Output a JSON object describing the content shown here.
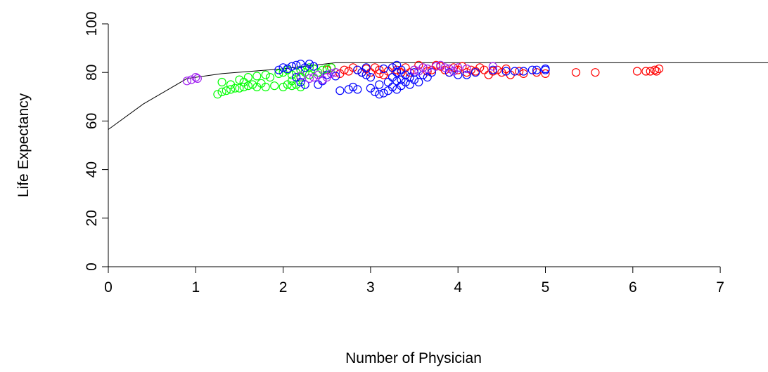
{
  "chart_data": {
    "type": "scatter",
    "title": "",
    "xlabel": "Number of Physician",
    "ylabel": "Life Expectancy",
    "xlim": [
      0,
      7.5
    ],
    "ylim": [
      0,
      100
    ],
    "x_ticks": [
      0,
      1,
      2,
      3,
      4,
      5,
      6,
      7
    ],
    "y_ticks": [
      0,
      20,
      40,
      60,
      80,
      100
    ],
    "grid": false,
    "legend": "none",
    "trend_line": {
      "x": [
        0,
        0.4,
        0.9,
        1.3,
        2.0,
        2.6,
        7.6
      ],
      "y": [
        56.5,
        67,
        77.5,
        79.5,
        81.5,
        84,
        84
      ]
    },
    "series": [
      {
        "color": "#ff0000",
        "points": [
          [
            2.6,
            80
          ],
          [
            2.7,
            81
          ],
          [
            2.75,
            80.5
          ],
          [
            2.8,
            82
          ],
          [
            2.85,
            81
          ],
          [
            2.9,
            80
          ],
          [
            2.95,
            81.5
          ],
          [
            3.0,
            80
          ],
          [
            3.05,
            82
          ],
          [
            3.1,
            81
          ],
          [
            3.15,
            79
          ],
          [
            3.2,
            80.5
          ],
          [
            3.25,
            82
          ],
          [
            3.3,
            81
          ],
          [
            3.4,
            82
          ],
          [
            3.45,
            80
          ],
          [
            3.5,
            81
          ],
          [
            3.55,
            83
          ],
          [
            3.6,
            82
          ],
          [
            3.65,
            80.5
          ],
          [
            3.7,
            81
          ],
          [
            3.75,
            83
          ],
          [
            3.8,
            82.5
          ],
          [
            3.85,
            81
          ],
          [
            3.9,
            80
          ],
          [
            3.95,
            82
          ],
          [
            4.0,
            81
          ],
          [
            4.05,
            82.5
          ],
          [
            4.1,
            80
          ],
          [
            4.15,
            81
          ],
          [
            4.2,
            80.5
          ],
          [
            4.25,
            82
          ],
          [
            4.3,
            81
          ],
          [
            4.35,
            79
          ],
          [
            4.4,
            80.5
          ],
          [
            4.45,
            81
          ],
          [
            4.5,
            80
          ],
          [
            4.55,
            81.5
          ],
          [
            4.6,
            79
          ],
          [
            4.7,
            80.5
          ],
          [
            4.75,
            79.5
          ],
          [
            4.9,
            80
          ],
          [
            5.0,
            79.5
          ],
          [
            5.35,
            80
          ],
          [
            5.57,
            80
          ],
          [
            6.05,
            80.5
          ],
          [
            6.15,
            80.5
          ],
          [
            6.2,
            80.5
          ],
          [
            6.25,
            81
          ],
          [
            6.27,
            80.5
          ],
          [
            6.3,
            81.5
          ],
          [
            2.5,
            81
          ],
          [
            2.55,
            82
          ],
          [
            2.65,
            79.5
          ],
          [
            3.35,
            80
          ],
          [
            3.1,
            79.5
          ]
        ]
      },
      {
        "color": "#00ff00",
        "points": [
          [
            1.25,
            71
          ],
          [
            1.3,
            72
          ],
          [
            1.35,
            72.5
          ],
          [
            1.4,
            73
          ],
          [
            1.45,
            73.5
          ],
          [
            1.5,
            73.5
          ],
          [
            1.55,
            74
          ],
          [
            1.6,
            74.5
          ],
          [
            1.65,
            75
          ],
          [
            1.7,
            74
          ],
          [
            1.75,
            75.5
          ],
          [
            1.8,
            74
          ],
          [
            1.9,
            74.5
          ],
          [
            2.0,
            74
          ],
          [
            2.05,
            75
          ],
          [
            2.1,
            74.5
          ],
          [
            2.15,
            75
          ],
          [
            2.2,
            74
          ],
          [
            1.3,
            76
          ],
          [
            1.5,
            77
          ],
          [
            1.6,
            78
          ],
          [
            1.7,
            78.5
          ],
          [
            1.8,
            79
          ],
          [
            1.85,
            78
          ],
          [
            1.95,
            79.5
          ],
          [
            2.0,
            80
          ],
          [
            2.05,
            81
          ],
          [
            2.1,
            79
          ],
          [
            2.15,
            80
          ],
          [
            2.2,
            81
          ],
          [
            2.25,
            80
          ],
          [
            2.3,
            82
          ],
          [
            2.35,
            81.5
          ],
          [
            2.4,
            80
          ],
          [
            2.45,
            81
          ],
          [
            2.5,
            81.5
          ],
          [
            2.55,
            82
          ],
          [
            2.3,
            79
          ],
          [
            2.2,
            78
          ],
          [
            2.1,
            76.5
          ],
          [
            1.4,
            75
          ],
          [
            1.55,
            76
          ]
        ]
      },
      {
        "color": "#0000ff",
        "points": [
          [
            1.95,
            81
          ],
          [
            2.0,
            82
          ],
          [
            2.05,
            81.5
          ],
          [
            2.1,
            82.5
          ],
          [
            2.15,
            83
          ],
          [
            2.2,
            83.5
          ],
          [
            2.25,
            82
          ],
          [
            2.3,
            83.5
          ],
          [
            2.35,
            82.5
          ],
          [
            2.15,
            78
          ],
          [
            2.2,
            76
          ],
          [
            2.25,
            75
          ],
          [
            2.4,
            75
          ],
          [
            2.45,
            76.5
          ],
          [
            2.5,
            79
          ],
          [
            2.6,
            78.5
          ],
          [
            2.65,
            72.5
          ],
          [
            2.75,
            73
          ],
          [
            2.8,
            74
          ],
          [
            2.85,
            73
          ],
          [
            2.9,
            80
          ],
          [
            2.95,
            79
          ],
          [
            3.0,
            78
          ],
          [
            3.0,
            73.5
          ],
          [
            3.05,
            72
          ],
          [
            3.1,
            71
          ],
          [
            3.1,
            75
          ],
          [
            3.15,
            71.5
          ],
          [
            3.2,
            72.5
          ],
          [
            3.2,
            76
          ],
          [
            3.25,
            78
          ],
          [
            3.25,
            74
          ],
          [
            3.3,
            73
          ],
          [
            3.3,
            76.5
          ],
          [
            3.3,
            80
          ],
          [
            3.35,
            81
          ],
          [
            3.35,
            77
          ],
          [
            3.35,
            74.5
          ],
          [
            3.4,
            79
          ],
          [
            3.4,
            76
          ],
          [
            3.45,
            78
          ],
          [
            3.45,
            75
          ],
          [
            3.5,
            80
          ],
          [
            3.5,
            77
          ],
          [
            3.55,
            76
          ],
          [
            3.6,
            79
          ],
          [
            3.65,
            78
          ],
          [
            3.7,
            80
          ],
          [
            2.85,
            81
          ],
          [
            2.95,
            82
          ],
          [
            3.15,
            81.5
          ],
          [
            3.25,
            82
          ],
          [
            3.3,
            83
          ],
          [
            3.9,
            80
          ],
          [
            4.0,
            79
          ],
          [
            4.1,
            79
          ],
          [
            4.2,
            80
          ],
          [
            4.4,
            81
          ],
          [
            4.55,
            80.5
          ],
          [
            4.65,
            80.5
          ],
          [
            4.75,
            80.5
          ],
          [
            4.85,
            81
          ],
          [
            4.9,
            81
          ],
          [
            5.0,
            81.5
          ],
          [
            5.0,
            81
          ]
        ]
      },
      {
        "color": "#a020f0",
        "points": [
          [
            0.9,
            76.5
          ],
          [
            0.95,
            77
          ],
          [
            1.0,
            78
          ],
          [
            1.02,
            77.5
          ],
          [
            2.2,
            78.5
          ],
          [
            2.3,
            77.5
          ],
          [
            2.35,
            78
          ],
          [
            2.4,
            79
          ],
          [
            2.45,
            77
          ],
          [
            2.5,
            78
          ],
          [
            2.55,
            79.5
          ],
          [
            2.6,
            80
          ],
          [
            3.5,
            81
          ],
          [
            3.55,
            80.5
          ],
          [
            3.6,
            82
          ],
          [
            3.65,
            81.5
          ],
          [
            3.75,
            82.5
          ],
          [
            3.8,
            83
          ],
          [
            3.85,
            82
          ],
          [
            3.9,
            81.5
          ],
          [
            3.95,
            80.5
          ],
          [
            4.0,
            82
          ],
          [
            4.1,
            81.5
          ],
          [
            4.4,
            82.5
          ]
        ]
      }
    ]
  }
}
